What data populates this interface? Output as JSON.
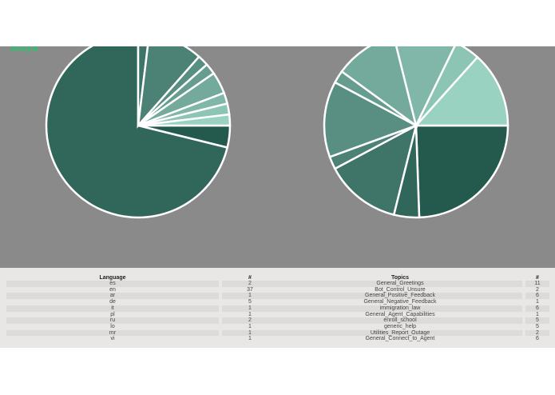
{
  "logo": {
    "text": "Maya",
    "color": "#2fbf71"
  },
  "colors": {
    "background": "#8a8a8a",
    "dark": "#245a4e",
    "light": "#9ad2c2",
    "stroke": "#ffffff"
  },
  "language_table": {
    "headers": [
      "Language",
      "#"
    ],
    "rows": [
      [
        "es",
        "2"
      ],
      [
        "en",
        "37"
      ],
      [
        "ar",
        "1"
      ],
      [
        "de",
        "5"
      ],
      [
        "it",
        "1"
      ],
      [
        "pl",
        "1"
      ],
      [
        "ru",
        "2"
      ],
      [
        "lo",
        "1"
      ],
      [
        "mr",
        "1"
      ],
      [
        "vi",
        "1"
      ]
    ]
  },
  "topics_table": {
    "headers": [
      "Topics",
      "#"
    ],
    "rows": [
      [
        "General_Greetings",
        "11"
      ],
      [
        "Bot_Control_Unsure",
        "2"
      ],
      [
        "General_Positive_Feedback",
        "6"
      ],
      [
        "General_Negative_Feedback",
        "1"
      ],
      [
        "immigration_law",
        "6"
      ],
      [
        "General_Agent_Capabilities",
        "1"
      ],
      [
        "enroll_school",
        "5"
      ],
      [
        "generic_help",
        "5"
      ],
      [
        "Utilities_Report_Outage",
        "2"
      ],
      [
        "General_Connect_to_Agent",
        "6"
      ]
    ]
  },
  "chart_data": [
    {
      "type": "pie",
      "categories": [
        "es",
        "en",
        "ar",
        "de",
        "it",
        "pl",
        "ru",
        "lo",
        "mr",
        "vi"
      ],
      "values": [
        2,
        37,
        1,
        5,
        1,
        1,
        2,
        1,
        1,
        1
      ]
    },
    {
      "type": "pie",
      "categories": [
        "General_Greetings",
        "Bot_Control_Unsure",
        "General_Positive_Feedback",
        "General_Negative_Feedback",
        "immigration_law",
        "General_Agent_Capabilities",
        "enroll_school",
        "generic_help",
        "Utilities_Report_Outage",
        "General_Connect_to_Agent"
      ],
      "values": [
        11,
        2,
        6,
        1,
        6,
        1,
        5,
        5,
        2,
        6
      ]
    }
  ]
}
